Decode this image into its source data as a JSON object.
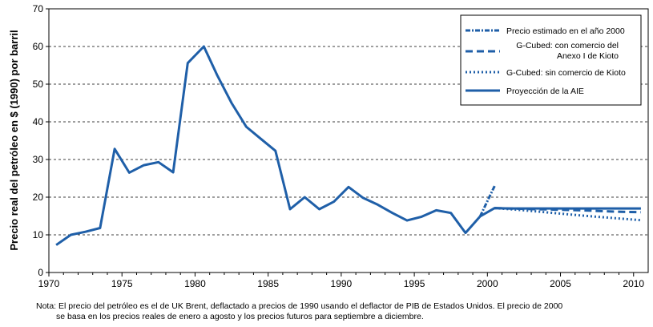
{
  "chart_data": {
    "type": "line",
    "ylabel": "Precio real del petróleo en $ (1990) por barril",
    "xlim": [
      1970,
      2011
    ],
    "ylim": [
      0,
      70
    ],
    "xticks": [
      1970,
      1975,
      1980,
      1985,
      1990,
      1995,
      2000,
      2005,
      2010
    ],
    "yticks": [
      0,
      10,
      20,
      30,
      40,
      50,
      60,
      70
    ],
    "grid": "horizontal dashed",
    "legend_position": "top-right",
    "series": [
      {
        "name": "Proyección de la AIE",
        "style": "solid",
        "color": "#1f5fa8",
        "x": [
          1970.5,
          1971.5,
          1972.5,
          1973.5,
          1974.5,
          1975.5,
          1976.5,
          1977.5,
          1978.5,
          1979.5,
          1980.6,
          1981.5,
          1982.5,
          1983.5,
          1984.5,
          1985.5,
          1986.5,
          1987.5,
          1988.5,
          1989.5,
          1990.5,
          1991.5,
          1992.5,
          1993.5,
          1994.5,
          1995.5,
          1996.5,
          1997.5,
          1998.5,
          1999.5,
          2000.5,
          2001.5,
          2002.5,
          2003.5,
          2004.5,
          2005.5,
          2006.5,
          2007.5,
          2008.5,
          2009.5,
          2010.5
        ],
        "y": [
          7.3,
          10,
          10.8,
          11.8,
          32.8,
          26.5,
          28.5,
          29.3,
          26.6,
          55.6,
          60,
          52.5,
          45,
          38.7,
          35.5,
          32.3,
          16.8,
          20,
          16.8,
          18.8,
          22.7,
          19.8,
          18,
          15.8,
          13.8,
          14.8,
          16.5,
          15.8,
          10.5,
          14.9,
          17.1,
          17.0,
          17.0,
          17.0,
          17.0,
          17.0,
          17.0,
          17.0,
          17.0,
          17.0,
          17.0
        ]
      },
      {
        "name": "Precio estimado en el año 2000",
        "style": "dash-dot",
        "color": "#1f5fa8",
        "x": [
          1999.5,
          2000.5
        ],
        "y": [
          14.9,
          23
        ]
      },
      {
        "name": "G-Cubed: con comercio del Anexo I de Kioto",
        "style": "dashed",
        "color": "#1f5fa8",
        "x": [
          2000.5,
          2002.5,
          2004.5,
          2006.5,
          2008.5,
          2010.5
        ],
        "y": [
          17.1,
          16.9,
          16.7,
          16.5,
          16.2,
          16.0
        ]
      },
      {
        "name": "G-Cubed: sin comercio de Kioto",
        "style": "dotted",
        "color": "#1f5fa8",
        "x": [
          2000.5,
          2002.5,
          2004.5,
          2006.5,
          2008.5,
          2010.5
        ],
        "y": [
          17.1,
          16.5,
          15.8,
          15.1,
          14.5,
          13.9
        ]
      }
    ]
  },
  "legend": [
    {
      "line1": "Precio estimado en el año 2000",
      "line2": "",
      "style": "dash-dot"
    },
    {
      "line1": "G-Cubed: con comercio del",
      "line2": "Anexo I de Kioto",
      "style": "dashed"
    },
    {
      "line1": "G-Cubed: sin comercio de Kioto",
      "line2": "",
      "style": "dotted"
    },
    {
      "line1": "Proyección de la AIE",
      "line2": "",
      "style": "solid"
    }
  ],
  "note": {
    "line1": "Nota: El precio del petróleo es el de UK Brent, deflactado a precios de 1990 usando el deflactor de PIB de Estados Unidos.  El precio de 2000",
    "line2": "se basa en los precios reales de enero a agosto y los precios futuros para septiembre a diciembre."
  }
}
